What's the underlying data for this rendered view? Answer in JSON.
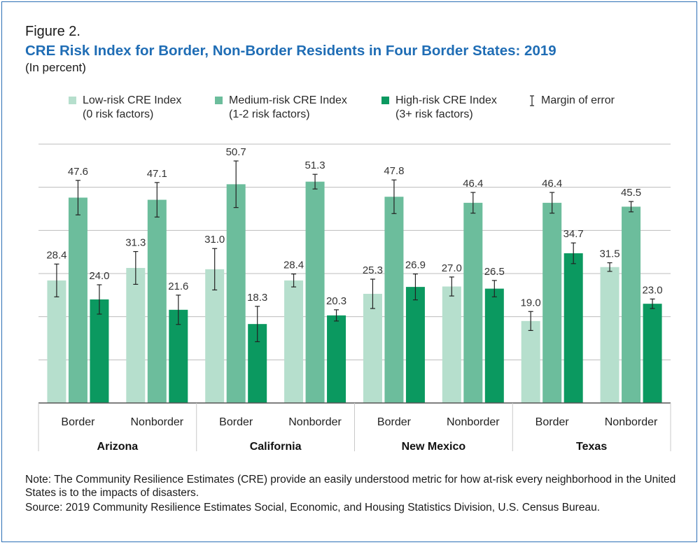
{
  "figure_label": "Figure 2.",
  "title": "CRE Risk Index for Border, Non-Border Residents in Four Border States: 2019",
  "subtitle": "(In percent)",
  "legend": {
    "low_line1": "Low-risk CRE Index",
    "low_line2": "(0 risk factors)",
    "medium_line1": "Medium-risk CRE Index",
    "medium_line2": "(1-2 risk factors)",
    "high_line1": "High-risk CRE Index",
    "high_line2": "(3+ risk factors)",
    "moe": "Margin of error"
  },
  "note": "Note: The Community Resilience Estimates (CRE) provide an easily understood metric for how at-risk every neighborhood in the United States is to the impacts of disasters.",
  "source": "Source: 2019 Community Resilience Estimates Social, Economic, and Housing Statistics Division, U.S. Census Bureau.",
  "colors": {
    "low": "#b6dfcd",
    "medium": "#6cbd9c",
    "high": "#0b9960",
    "title": "#1f6db5",
    "grid": "#bdbdbd",
    "axis": "#555555",
    "error": "#222222"
  },
  "chart_data": {
    "type": "bar",
    "ylim": [
      0,
      60
    ],
    "grid": true,
    "groups": [
      {
        "name": "Arizona",
        "categories": [
          "Border",
          "Nonborder"
        ]
      },
      {
        "name": "California",
        "categories": [
          "Border",
          "Nonborder"
        ]
      },
      {
        "name": "New Mexico",
        "categories": [
          "Border",
          "Nonborder"
        ]
      },
      {
        "name": "Texas",
        "categories": [
          "Border",
          "Nonborder"
        ]
      }
    ],
    "series": [
      {
        "name": "Low-risk CRE Index",
        "key": "low",
        "values": [
          28.4,
          31.3,
          31.0,
          28.4,
          25.3,
          27.0,
          19.0,
          31.5
        ],
        "moe": [
          3.8,
          3.8,
          4.8,
          1.5,
          3.4,
          2.2,
          2.2,
          1.0
        ]
      },
      {
        "name": "Medium-risk CRE Index",
        "key": "medium",
        "values": [
          47.6,
          47.1,
          50.7,
          51.3,
          47.8,
          46.4,
          46.4,
          45.5
        ],
        "moe": [
          4.0,
          4.0,
          5.4,
          1.7,
          3.9,
          2.4,
          2.4,
          1.2
        ]
      },
      {
        "name": "High-risk CRE Index",
        "key": "high",
        "values": [
          24.0,
          21.6,
          18.3,
          20.3,
          26.9,
          26.5,
          34.7,
          23.0
        ],
        "moe": [
          3.4,
          3.4,
          4.1,
          1.3,
          3.0,
          1.9,
          2.4,
          1.1
        ]
      }
    ]
  }
}
